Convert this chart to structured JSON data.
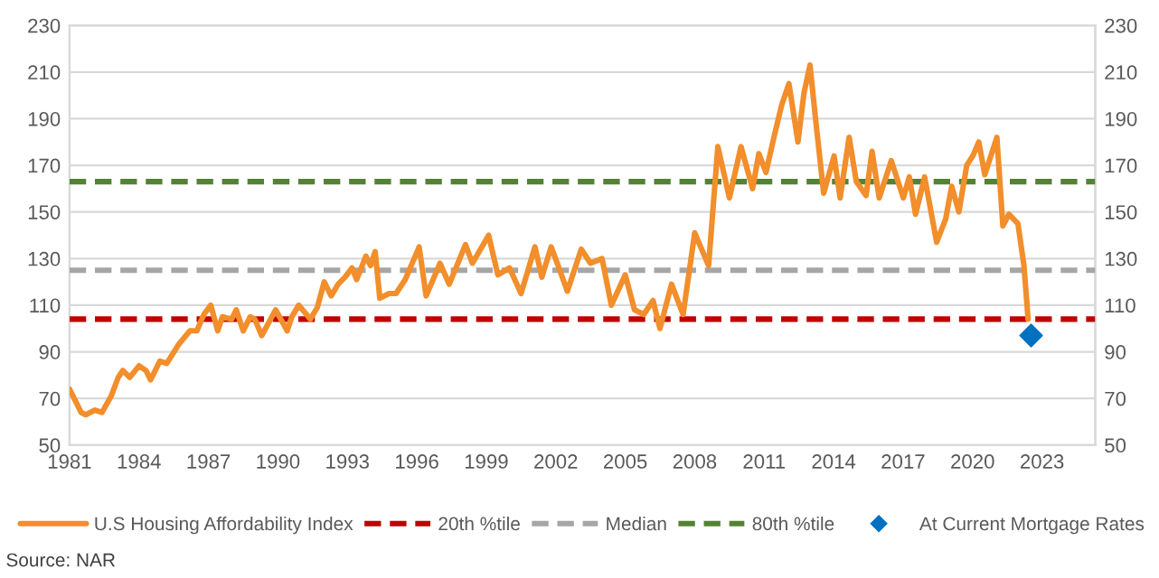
{
  "chart_data": {
    "type": "line",
    "xlim": [
      1981,
      2025.3
    ],
    "xticks": [
      1981,
      1984,
      1987,
      1990,
      1993,
      1996,
      1999,
      2002,
      2005,
      2008,
      2011,
      2014,
      2017,
      2020,
      2023
    ],
    "ylim": [
      50,
      230
    ],
    "yticks": [
      50,
      70,
      90,
      110,
      130,
      150,
      170,
      190,
      210,
      230
    ],
    "y2lim": [
      50,
      230
    ],
    "y2ticks": [
      50,
      70,
      90,
      110,
      130,
      150,
      170,
      190,
      210,
      230
    ],
    "grid": "y",
    "legend": "bottom",
    "series": [
      {
        "name": "U.S Housing Affordability Index",
        "color": "#f28e2b",
        "line_style": "solid",
        "marker": "none",
        "x": [
          1981.0,
          1981.2,
          1981.5,
          1981.7,
          1982.1,
          1982.4,
          1982.8,
          1983.1,
          1983.3,
          1983.6,
          1984.0,
          1984.3,
          1984.5,
          1984.9,
          1985.2,
          1985.7,
          1986.2,
          1986.5,
          1986.8,
          1987.1,
          1987.4,
          1987.6,
          1988.0,
          1988.2,
          1988.5,
          1988.8,
          1989.0,
          1989.3,
          1989.9,
          1990.4,
          1990.6,
          1990.9,
          1991.4,
          1991.7,
          1992.0,
          1992.3,
          1992.6,
          1992.9,
          1993.2,
          1993.4,
          1993.8,
          1994.0,
          1994.2,
          1994.4,
          1994.8,
          1995.1,
          1995.5,
          1996.1,
          1996.4,
          1997.0,
          1997.4,
          1998.1,
          1998.4,
          1999.1,
          1999.5,
          2000.0,
          2000.5,
          2001.1,
          2001.4,
          2001.8,
          2002.1,
          2002.5,
          2003.1,
          2003.5,
          2004.0,
          2004.4,
          2005.0,
          2005.4,
          2005.8,
          2006.2,
          2006.5,
          2007.0,
          2007.5,
          2008.0,
          2008.6,
          2009.0,
          2009.5,
          2010.0,
          2010.5,
          2010.77,
          2011.08,
          2011.42,
          2011.76,
          2012.07,
          2012.46,
          2012.72,
          2012.98,
          2013.23,
          2013.57,
          2014.02,
          2014.28,
          2014.67,
          2014.98,
          2015.4,
          2015.66,
          2015.97,
          2016.49,
          2017.01,
          2017.27,
          2017.54,
          2017.93,
          2018.45,
          2018.84,
          2019.1,
          2019.41,
          2019.75,
          2020.01,
          2020.27,
          2020.53,
          2021.05,
          2021.31,
          2021.57,
          2021.96,
          2022.22,
          2022.4
        ],
        "values": [
          74,
          70,
          64,
          63,
          65,
          64,
          71,
          79,
          82,
          79,
          84,
          82,
          78,
          86,
          85,
          93,
          99,
          99,
          106,
          110,
          99,
          105,
          104,
          108,
          99,
          105,
          104,
          97,
          108,
          99,
          105,
          110,
          104,
          109,
          120,
          114,
          119,
          122,
          126,
          121,
          131,
          127,
          133,
          113,
          115,
          115,
          121,
          135,
          114,
          128,
          119,
          136,
          128,
          140,
          123,
          126,
          115,
          135,
          122,
          135,
          127,
          116,
          134,
          128,
          130,
          110,
          123,
          108,
          106,
          112,
          100,
          119,
          106,
          141,
          127,
          178,
          156,
          178,
          160,
          175,
          167,
          182,
          196,
          205,
          180,
          201,
          213,
          189,
          158,
          174,
          156,
          182,
          163,
          157,
          176,
          156,
          172,
          156,
          165,
          149,
          165,
          137,
          147,
          161,
          150,
          170,
          174,
          180,
          166,
          182,
          144,
          149,
          145,
          127,
          104
        ]
      },
      {
        "name": "At Current Mortgage Rates",
        "type": "scatter",
        "color": "#0070c0",
        "marker": "diamond",
        "x": [
          2022.53
        ],
        "values": [
          97
        ]
      }
    ],
    "ref_lines": [
      {
        "axis": "y",
        "value": 104,
        "label": "20th %tile",
        "color": "#c00000",
        "line_style": "dashed"
      },
      {
        "axis": "y",
        "value": 125,
        "label": "Median",
        "color": "#a6a6a6",
        "line_style": "dashed"
      },
      {
        "axis": "y",
        "value": 163,
        "label": "80th %tile",
        "color": "#548235",
        "line_style": "dashed"
      }
    ],
    "annotations": [
      "Source: NAR"
    ]
  }
}
